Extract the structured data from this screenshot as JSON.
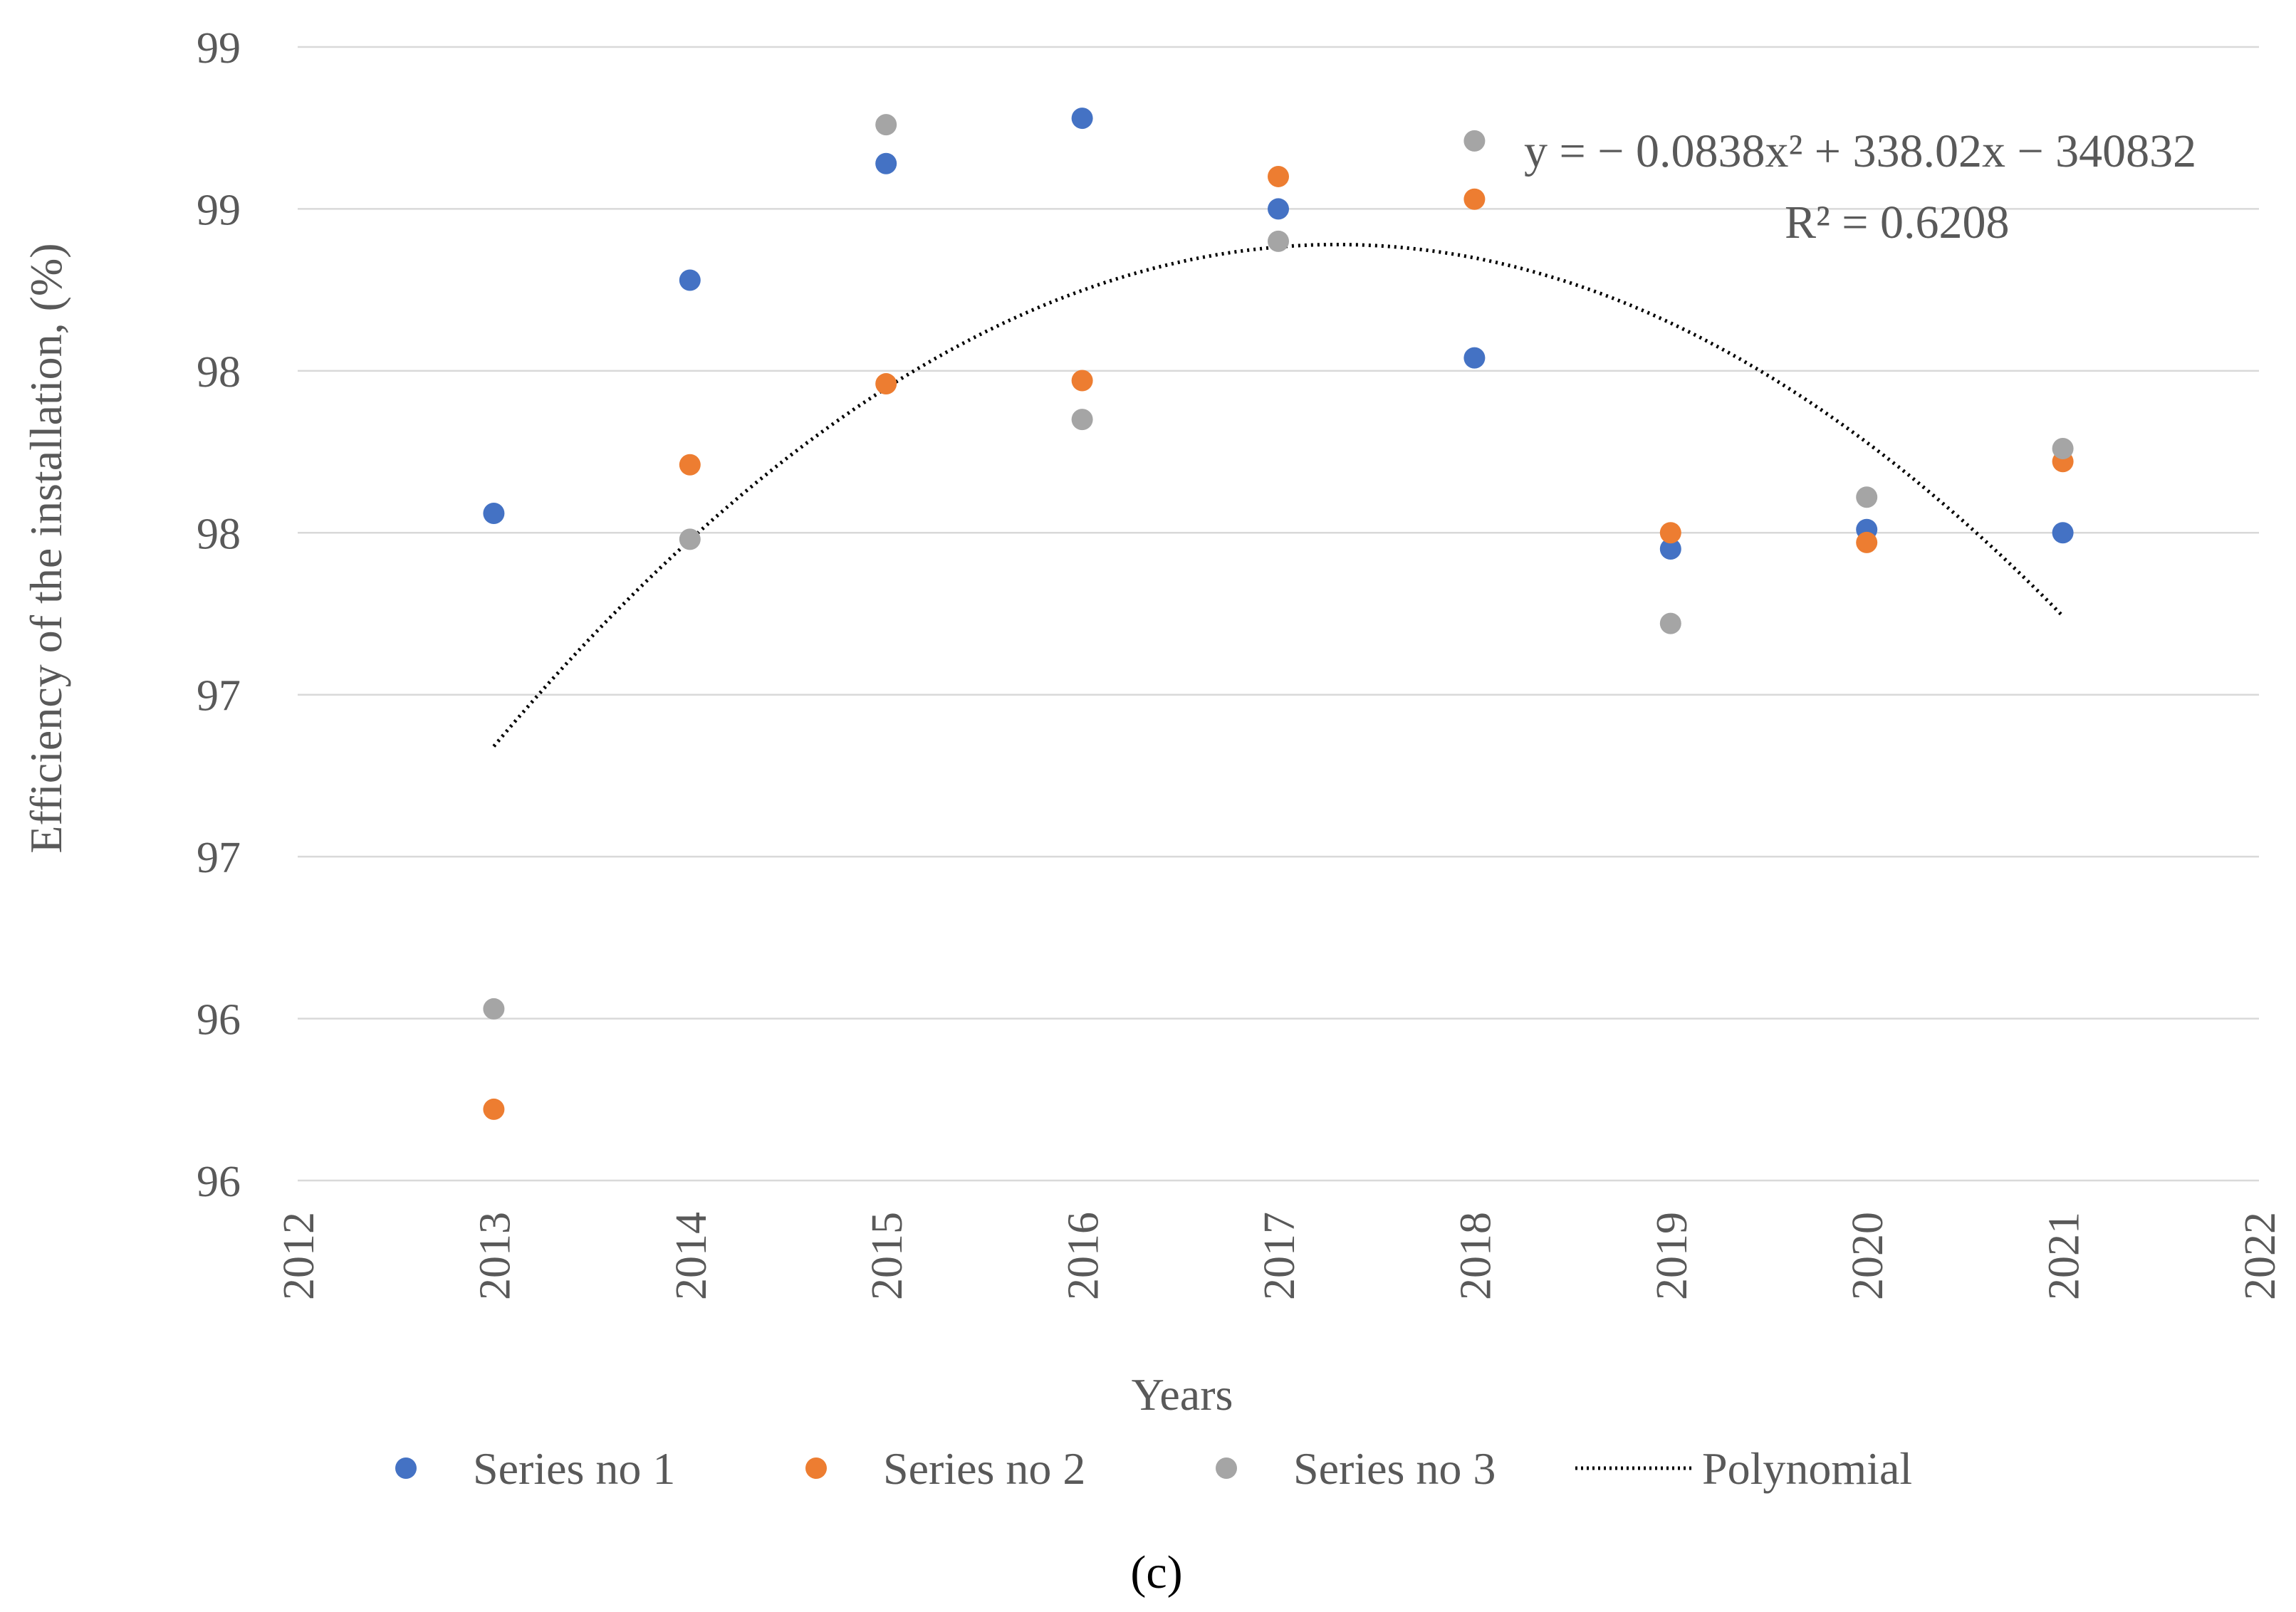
{
  "chart_data": {
    "type": "scatter",
    "title": "",
    "xlabel": "Years",
    "ylabel": "Efficiency of the installation, (%)",
    "xlim": [
      2012,
      2022
    ],
    "ylim": [
      95.5,
      99.0
    ],
    "x_ticks": [
      "2012",
      "2013",
      "2014",
      "2015",
      "2016",
      "2017",
      "2018",
      "2019",
      "2020",
      "2021",
      "2022"
    ],
    "y_ticks": [
      {
        "value": 95.5,
        "label": "96"
      },
      {
        "value": 96.0,
        "label": "96"
      },
      {
        "value": 96.5,
        "label": "97"
      },
      {
        "value": 97.0,
        "label": "97"
      },
      {
        "value": 97.5,
        "label": "98"
      },
      {
        "value": 98.0,
        "label": "98"
      },
      {
        "value": 98.5,
        "label": "99"
      },
      {
        "value": 99.0,
        "label": "99"
      }
    ],
    "grid": true,
    "legend_position": "bottom",
    "series": [
      {
        "name": "Series no 1",
        "color": "#4472c4",
        "x": [
          2013,
          2014,
          2015,
          2016,
          2017,
          2018,
          2019,
          2020,
          2021
        ],
        "y": [
          97.56,
          98.28,
          98.64,
          98.78,
          98.5,
          98.04,
          97.45,
          97.51,
          97.5
        ]
      },
      {
        "name": "Series no 2",
        "color": "#ed7d31",
        "x": [
          2013,
          2014,
          2015,
          2016,
          2017,
          2018,
          2019,
          2020,
          2021
        ],
        "y": [
          95.72,
          97.71,
          97.96,
          97.97,
          98.6,
          98.53,
          97.5,
          97.47,
          97.72
        ]
      },
      {
        "name": "Series no 3",
        "color": "#a5a5a5",
        "x": [
          2013,
          2014,
          2015,
          2016,
          2017,
          2018,
          2019,
          2020,
          2021
        ],
        "y": [
          96.03,
          97.48,
          98.76,
          97.85,
          98.4,
          98.71,
          97.22,
          97.61,
          97.76
        ]
      }
    ],
    "trendline": {
      "name": "Polynomial",
      "style": "dotted",
      "color": "#000000",
      "x_range": [
        2013,
        2021
      ],
      "peak": {
        "x": 2017.3,
        "y": 98.39
      },
      "a": -0.0838,
      "equation": "y = − 0.0838x² + 338.02x − 340832",
      "r_squared": "R² = 0.6208"
    },
    "caption": "(c)"
  }
}
